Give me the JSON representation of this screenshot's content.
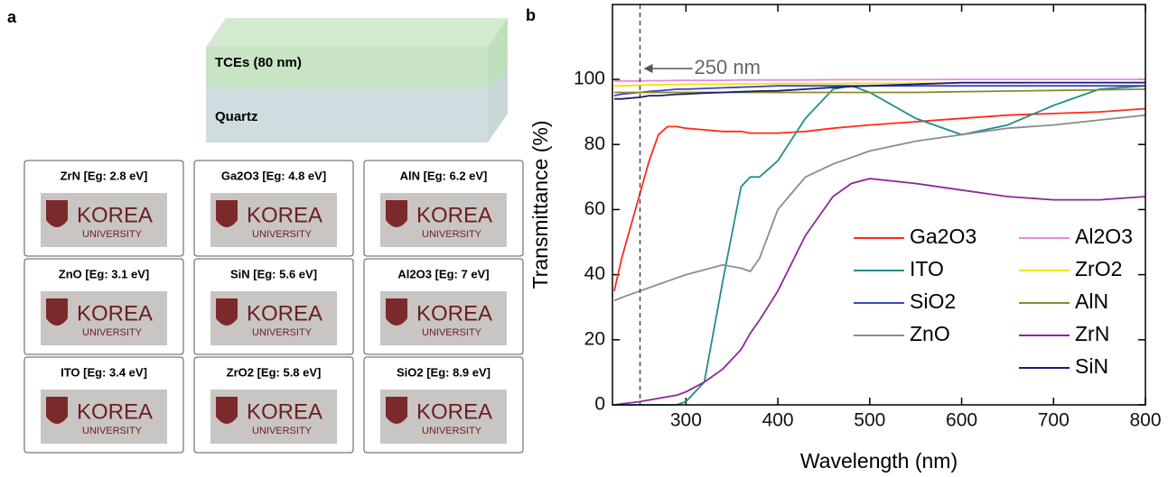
{
  "panel_labels": [
    "a",
    "b"
  ],
  "stack": {
    "top_layer": "TCEs (80 nm)",
    "bottom_layer": "Quartz"
  },
  "photos": {
    "logo_text": [
      "KOREA",
      "UNIVERSITY"
    ],
    "labels": [
      "ZrN [Eg: 2.8 eV]",
      "Ga2O3 [Eg: 4.8 eV]",
      "AlN [Eg: 6.2 eV]",
      "ZnO [Eg: 3.1 eV]",
      "SiN [Eg: 5.6 eV]",
      "Al2O3 [Eg: 7 eV]",
      "ITO [Eg: 3.4 eV]",
      "ZrO2 [Eg: 5.8 eV]",
      "SiO2 [Eg: 8.9 eV]"
    ]
  },
  "chart_data": {
    "type": "line",
    "x_label": "Wavelength (nm)",
    "y_label": "Transmittance (%)",
    "annotation": {
      "text": "250 nm",
      "x": 250
    },
    "xlim": [
      220,
      800
    ],
    "ylim": [
      0,
      123
    ],
    "xticks": [
      300,
      400,
      500,
      600,
      700,
      800
    ],
    "yticks": [
      0,
      20,
      40,
      60,
      80,
      100
    ],
    "x": [
      222,
      230,
      250,
      260,
      270,
      280,
      290,
      300,
      320,
      340,
      360,
      370,
      380,
      400,
      430,
      460,
      480,
      500,
      550,
      600,
      650,
      700,
      750,
      800
    ],
    "series": [
      {
        "name": "Ga2O3",
        "color": "#ff2a1a",
        "values": [
          35,
          45,
          65,
          75,
          83,
          85.5,
          85.5,
          85,
          84.5,
          84,
          84,
          83.5,
          83.5,
          83.5,
          84,
          85,
          85.5,
          86,
          87,
          88,
          89,
          89.5,
          90,
          91
        ]
      },
      {
        "name": "ITO",
        "color": "#1f8f8a",
        "values": [
          0,
          0,
          0,
          0,
          0,
          0,
          0,
          1,
          7,
          38,
          67,
          70,
          70,
          75,
          88,
          97,
          98,
          96,
          88,
          83,
          86,
          92,
          97,
          98
        ]
      },
      {
        "name": "SiO2",
        "color": "#3a46c8",
        "values": [
          95,
          95.5,
          96,
          96.3,
          96.5,
          96.7,
          97,
          97,
          97.2,
          97.4,
          97.6,
          97.7,
          97.8,
          98,
          98,
          98,
          98,
          98,
          98,
          98,
          98,
          98,
          98,
          98
        ]
      },
      {
        "name": "ZnO",
        "color": "#8c8c8c",
        "values": [
          32,
          33,
          35,
          36,
          37,
          38,
          39,
          40,
          41.5,
          43,
          42,
          41,
          45,
          60,
          70,
          74,
          76,
          78,
          81,
          83,
          85,
          86,
          87.5,
          89
        ]
      },
      {
        "name": "Al2O3",
        "color": "#e58ae0",
        "values": [
          99.5,
          99.5,
          99.5,
          99.6,
          99.6,
          99.6,
          99.7,
          99.7,
          99.7,
          99.7,
          99.8,
          99.8,
          99.8,
          99.8,
          99.8,
          99.9,
          99.9,
          99.9,
          99.9,
          100,
          100,
          100,
          100,
          100
        ]
      },
      {
        "name": "ZrO2",
        "color": "#f2e200",
        "values": [
          98,
          98,
          98.2,
          98.3,
          98.3,
          98.4,
          98.4,
          98.5,
          98.5,
          98.5,
          98.6,
          98.6,
          98.6,
          98.7,
          98.7,
          98.7,
          98.8,
          98.8,
          98.8,
          98.9,
          98.9,
          99,
          99,
          99
        ]
      },
      {
        "name": "AlN",
        "color": "#8a8a30",
        "values": [
          96,
          96,
          96,
          96,
          96,
          96,
          96,
          96,
          96,
          96,
          96,
          96,
          96,
          96,
          96,
          96,
          96,
          96,
          96,
          96.2,
          96.4,
          96.6,
          96.8,
          97
        ]
      },
      {
        "name": "ZrN",
        "color": "#8a2a9a",
        "values": [
          0,
          0.3,
          1,
          1.5,
          2,
          2.5,
          3,
          4,
          7,
          11,
          17,
          22,
          26,
          35,
          52,
          64,
          68,
          69.5,
          68,
          66,
          64,
          63,
          63,
          64
        ]
      },
      {
        "name": "SiN",
        "color": "#1a1f6e",
        "values": [
          94,
          94,
          94.5,
          95,
          95,
          95.2,
          95.4,
          95.5,
          95.8,
          96,
          96.2,
          96.3,
          96.4,
          96.5,
          97,
          97.5,
          97.8,
          98,
          98.5,
          99,
          99,
          99,
          99,
          99
        ]
      }
    ]
  }
}
